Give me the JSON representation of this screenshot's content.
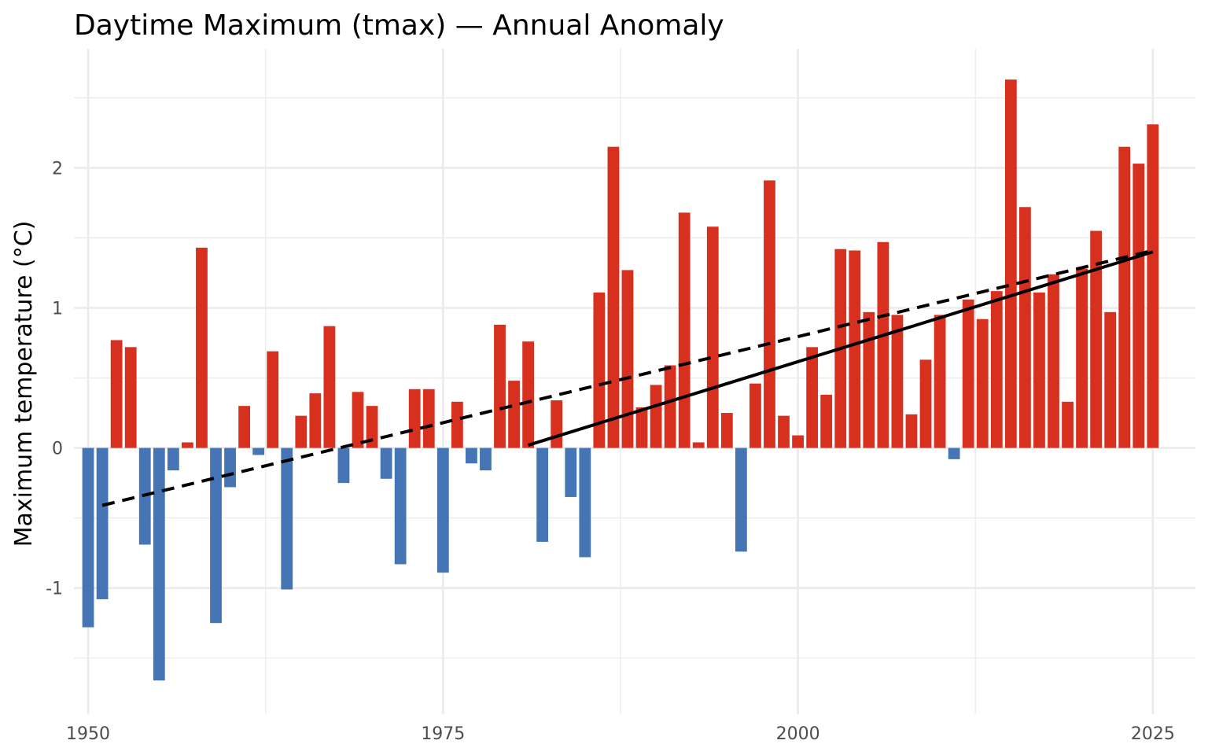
{
  "chart_data": {
    "type": "bar",
    "title": "Daytime Maximum (tmax) — Annual Anomaly",
    "xlabel": "",
    "ylabel": "Maximum temperature (°C)",
    "x_ticks": [
      "1950",
      "1975",
      "2000",
      "2025"
    ],
    "y_ticks": [
      "-1",
      "0",
      "1",
      "2"
    ],
    "xlim": [
      1949,
      2028
    ],
    "ylim": [
      -1.9,
      2.85
    ],
    "grid": true,
    "colors": {
      "positive": "#d7301f",
      "negative": "#4575b4",
      "trend": "#000000"
    },
    "x": [
      1950,
      1951,
      1952,
      1953,
      1954,
      1955,
      1956,
      1957,
      1958,
      1959,
      1960,
      1961,
      1962,
      1963,
      1964,
      1965,
      1966,
      1967,
      1968,
      1969,
      1970,
      1971,
      1972,
      1973,
      1974,
      1975,
      1976,
      1977,
      1978,
      1979,
      1980,
      1981,
      1982,
      1983,
      1984,
      1985,
      1986,
      1987,
      1988,
      1989,
      1990,
      1991,
      1992,
      1993,
      1994,
      1995,
      1996,
      1997,
      1998,
      1999,
      2000,
      2001,
      2002,
      2003,
      2004,
      2005,
      2006,
      2007,
      2008,
      2009,
      2010,
      2011,
      2012,
      2013,
      2014,
      2015,
      2016,
      2017,
      2018,
      2019,
      2020,
      2021,
      2022,
      2023,
      2024,
      2025
    ],
    "values": [
      -1.28,
      -1.08,
      0.77,
      0.72,
      -0.69,
      -1.66,
      -0.16,
      0.04,
      1.43,
      -1.25,
      -0.28,
      0.3,
      -0.05,
      0.69,
      -1.01,
      0.23,
      0.39,
      0.87,
      -0.25,
      0.4,
      0.3,
      -0.22,
      -0.83,
      0.42,
      0.42,
      -0.89,
      0.33,
      -0.11,
      -0.16,
      0.88,
      0.48,
      0.76,
      -0.67,
      0.34,
      -0.35,
      -0.78,
      1.11,
      2.15,
      1.27,
      0.29,
      0.45,
      0.59,
      1.68,
      0.04,
      1.58,
      0.25,
      -0.74,
      0.46,
      1.91,
      0.23,
      0.09,
      0.72,
      0.38,
      1.42,
      1.41,
      0.97,
      1.47,
      0.95,
      0.24,
      0.63,
      0.95,
      -0.08,
      1.06,
      0.92,
      1.12,
      2.63,
      1.72,
      1.11,
      1.24,
      0.33,
      1.28,
      1.55,
      0.97,
      2.15,
      2.03,
      2.31
    ],
    "trend_lines": [
      {
        "style": "dashed",
        "x": [
          1951,
          2025
        ],
        "y": [
          -0.41,
          1.41
        ]
      },
      {
        "style": "solid",
        "x": [
          1981,
          2025
        ],
        "y": [
          0.02,
          1.4
        ]
      }
    ]
  }
}
